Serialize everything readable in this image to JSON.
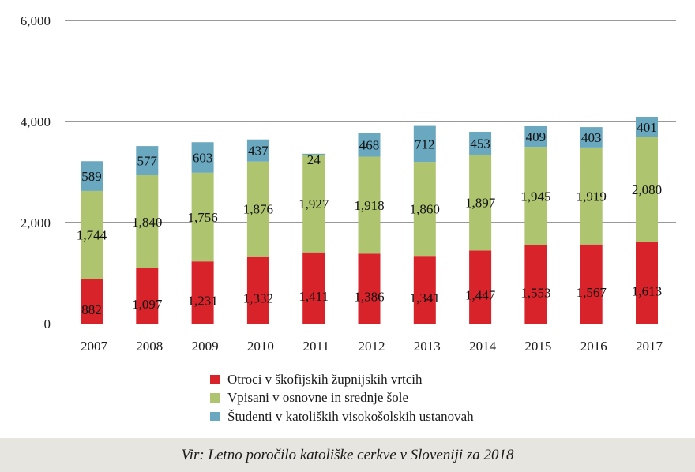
{
  "chart_data": {
    "type": "bar",
    "stacked": true,
    "categories": [
      "2007",
      "2008",
      "2009",
      "2010",
      "2011",
      "2012",
      "2013",
      "2014",
      "2015",
      "2016",
      "2017"
    ],
    "series": [
      {
        "name": "Otroci v škofijskih župnijskih vrtcih",
        "color": "#d9232b",
        "values": [
          882,
          1097,
          1231,
          1332,
          1411,
          1386,
          1341,
          1447,
          1553,
          1567,
          1613
        ],
        "labels": [
          "882",
          "1,097",
          "1,231",
          "1,332",
          "1,411",
          "1,386",
          "1,341",
          "1,447",
          "1,553",
          "1,567",
          "1,613"
        ]
      },
      {
        "name": "Vpisani v osnovne in srednje šole",
        "color": "#aec46f",
        "values": [
          1744,
          1840,
          1756,
          1876,
          1927,
          1918,
          1860,
          1897,
          1945,
          1919,
          2080
        ],
        "labels": [
          "1,744",
          "1,840",
          "1,756",
          "1,876",
          "1,927",
          "1,918",
          "1,860",
          "1,897",
          "1,945",
          "1,919",
          "2,080"
        ]
      },
      {
        "name": "Študenti v katoliških visokošolskih ustanovah",
        "color": "#6aa8c0",
        "values": [
          589,
          577,
          603,
          437,
          24,
          468,
          712,
          453,
          409,
          403,
          401
        ],
        "labels": [
          "589",
          "577",
          "603",
          "437",
          "24",
          "468",
          "712",
          "453",
          "409",
          "403",
          "401"
        ]
      }
    ],
    "ylim": [
      0,
      6000
    ],
    "yticks": [
      "0",
      "2,000",
      "4,000",
      "6,000"
    ],
    "ytick_values": [
      0,
      2000,
      4000,
      6000
    ],
    "grid": true,
    "legend_position": "bottom"
  },
  "source": "Vir: Letno poročilo katoliške cerkve v Sloveniji za 2018"
}
